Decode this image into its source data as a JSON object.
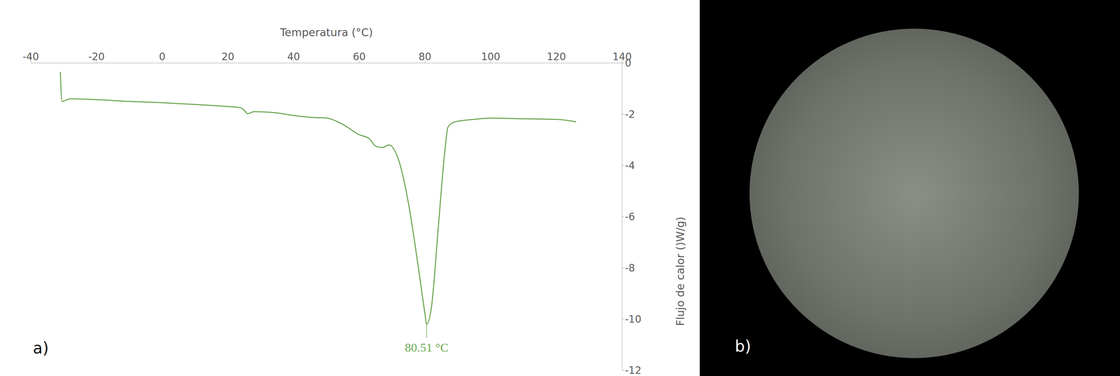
{
  "chart_data": {
    "type": "line",
    "x_label": "Temperatura (°C)",
    "y_label": "Flujo de calor ()W/g)",
    "x": [
      -31,
      -30.5,
      -28,
      -20,
      -10,
      0,
      10,
      20,
      24,
      25,
      26,
      28,
      35,
      40,
      45,
      50,
      55,
      60,
      63,
      65,
      67,
      69,
      72,
      75,
      78,
      80,
      80.51,
      82,
      84,
      86,
      87,
      89,
      95,
      100,
      110,
      120,
      126
    ],
    "values": [
      -0.35,
      -1.5,
      -1.4,
      -1.43,
      -1.5,
      -1.55,
      -1.62,
      -1.7,
      -1.75,
      -1.85,
      -1.98,
      -1.9,
      -1.95,
      -2.05,
      -2.12,
      -2.15,
      -2.4,
      -2.8,
      -2.95,
      -3.25,
      -3.3,
      -3.2,
      -3.8,
      -5.5,
      -8.0,
      -9.8,
      -10.2,
      -9.5,
      -6.5,
      -3.5,
      -2.5,
      -2.3,
      -2.2,
      -2.15,
      -2.18,
      -2.2,
      -2.3
    ],
    "color": "#5b9b3c",
    "xlim": [
      -40,
      140
    ],
    "xticks": [
      -40,
      -20,
      0,
      20,
      40,
      60,
      80,
      100,
      120,
      140
    ],
    "ylim": [
      -12,
      0
    ],
    "yticks": [
      0,
      -2,
      -4,
      -6,
      -8,
      -10,
      -12
    ],
    "grid": false,
    "annotations": [
      {
        "text": "80.51 °C",
        "x": 80.51,
        "y": -10.2,
        "color": "#6aa84f"
      }
    ]
  },
  "panel_labels": [
    "a)",
    "b)"
  ]
}
